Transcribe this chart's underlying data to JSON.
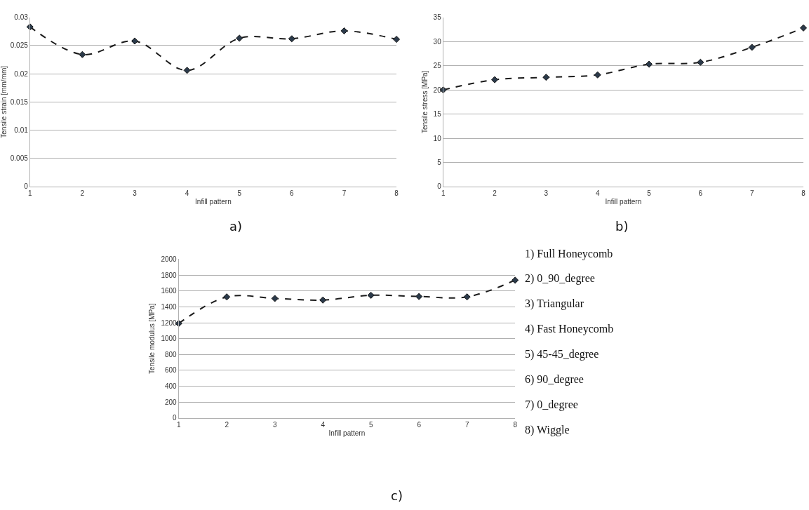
{
  "chart_data": [
    {
      "type": "line",
      "xlabel": "Infill pattern",
      "ylabel": "Tensile strain [mm/mm]",
      "x": [
        1,
        2,
        3,
        4,
        5,
        6,
        7,
        8
      ],
      "xlim": [
        1,
        8
      ],
      "xticks": [
        1,
        2,
        3,
        4,
        5,
        6,
        7,
        8
      ],
      "ylim": [
        0,
        0.03
      ],
      "yticks": [
        0,
        0.005,
        0.01,
        0.015,
        0.02,
        0.025,
        0.03
      ],
      "grid": "y",
      "marker": "diamond",
      "line_style": "dashed",
      "series": [
        {
          "color": "#1a1a1a",
          "values": [
            0.0283,
            0.0234,
            0.0258,
            0.0206,
            0.0263,
            0.0262,
            0.0276,
            0.0261
          ]
        }
      ],
      "annotations": [
        "a)"
      ]
    },
    {
      "type": "line",
      "xlabel": "Infill pattern",
      "ylabel": "Tensile stress [MPa]",
      "x": [
        1,
        2,
        3,
        4,
        5,
        6,
        7,
        8
      ],
      "xlim": [
        1,
        8
      ],
      "xticks": [
        1,
        2,
        3,
        4,
        5,
        6,
        7,
        8
      ],
      "ylim": [
        0,
        35
      ],
      "yticks": [
        0,
        5,
        10,
        15,
        20,
        25,
        30,
        35
      ],
      "grid": "y",
      "marker": "diamond",
      "line_style": "dashed",
      "series": [
        {
          "color": "#1a1a1a",
          "values": [
            20.0,
            22.1,
            22.6,
            23.1,
            25.3,
            25.7,
            28.8,
            32.8
          ]
        }
      ],
      "annotations": [
        "b)"
      ]
    },
    {
      "type": "line",
      "xlabel": "Infill pattern",
      "ylabel": "Tensile modulus [MPa]",
      "x": [
        1,
        2,
        3,
        4,
        5,
        6,
        7,
        8
      ],
      "xlim": [
        1,
        8
      ],
      "xticks": [
        1,
        2,
        3,
        4,
        5,
        6,
        7,
        8
      ],
      "ylim": [
        0,
        2000
      ],
      "yticks": [
        0,
        200,
        400,
        600,
        800,
        1000,
        1200,
        1400,
        1600,
        1800,
        2000
      ],
      "grid": "y",
      "marker": "diamond",
      "line_style": "dashed",
      "series": [
        {
          "color": "#1a1a1a",
          "values": [
            1190,
            1525,
            1505,
            1485,
            1545,
            1530,
            1525,
            1735
          ]
        }
      ],
      "annotations": [
        "1) Full Honeycomb",
        "2) 0_90_degree",
        "3) Triangular",
        "4) Fast Honeycomb",
        "5) 45-45_degree",
        "6) 90_degree",
        "7) 0_degree",
        "8) Wiggle",
        "c)"
      ]
    }
  ]
}
